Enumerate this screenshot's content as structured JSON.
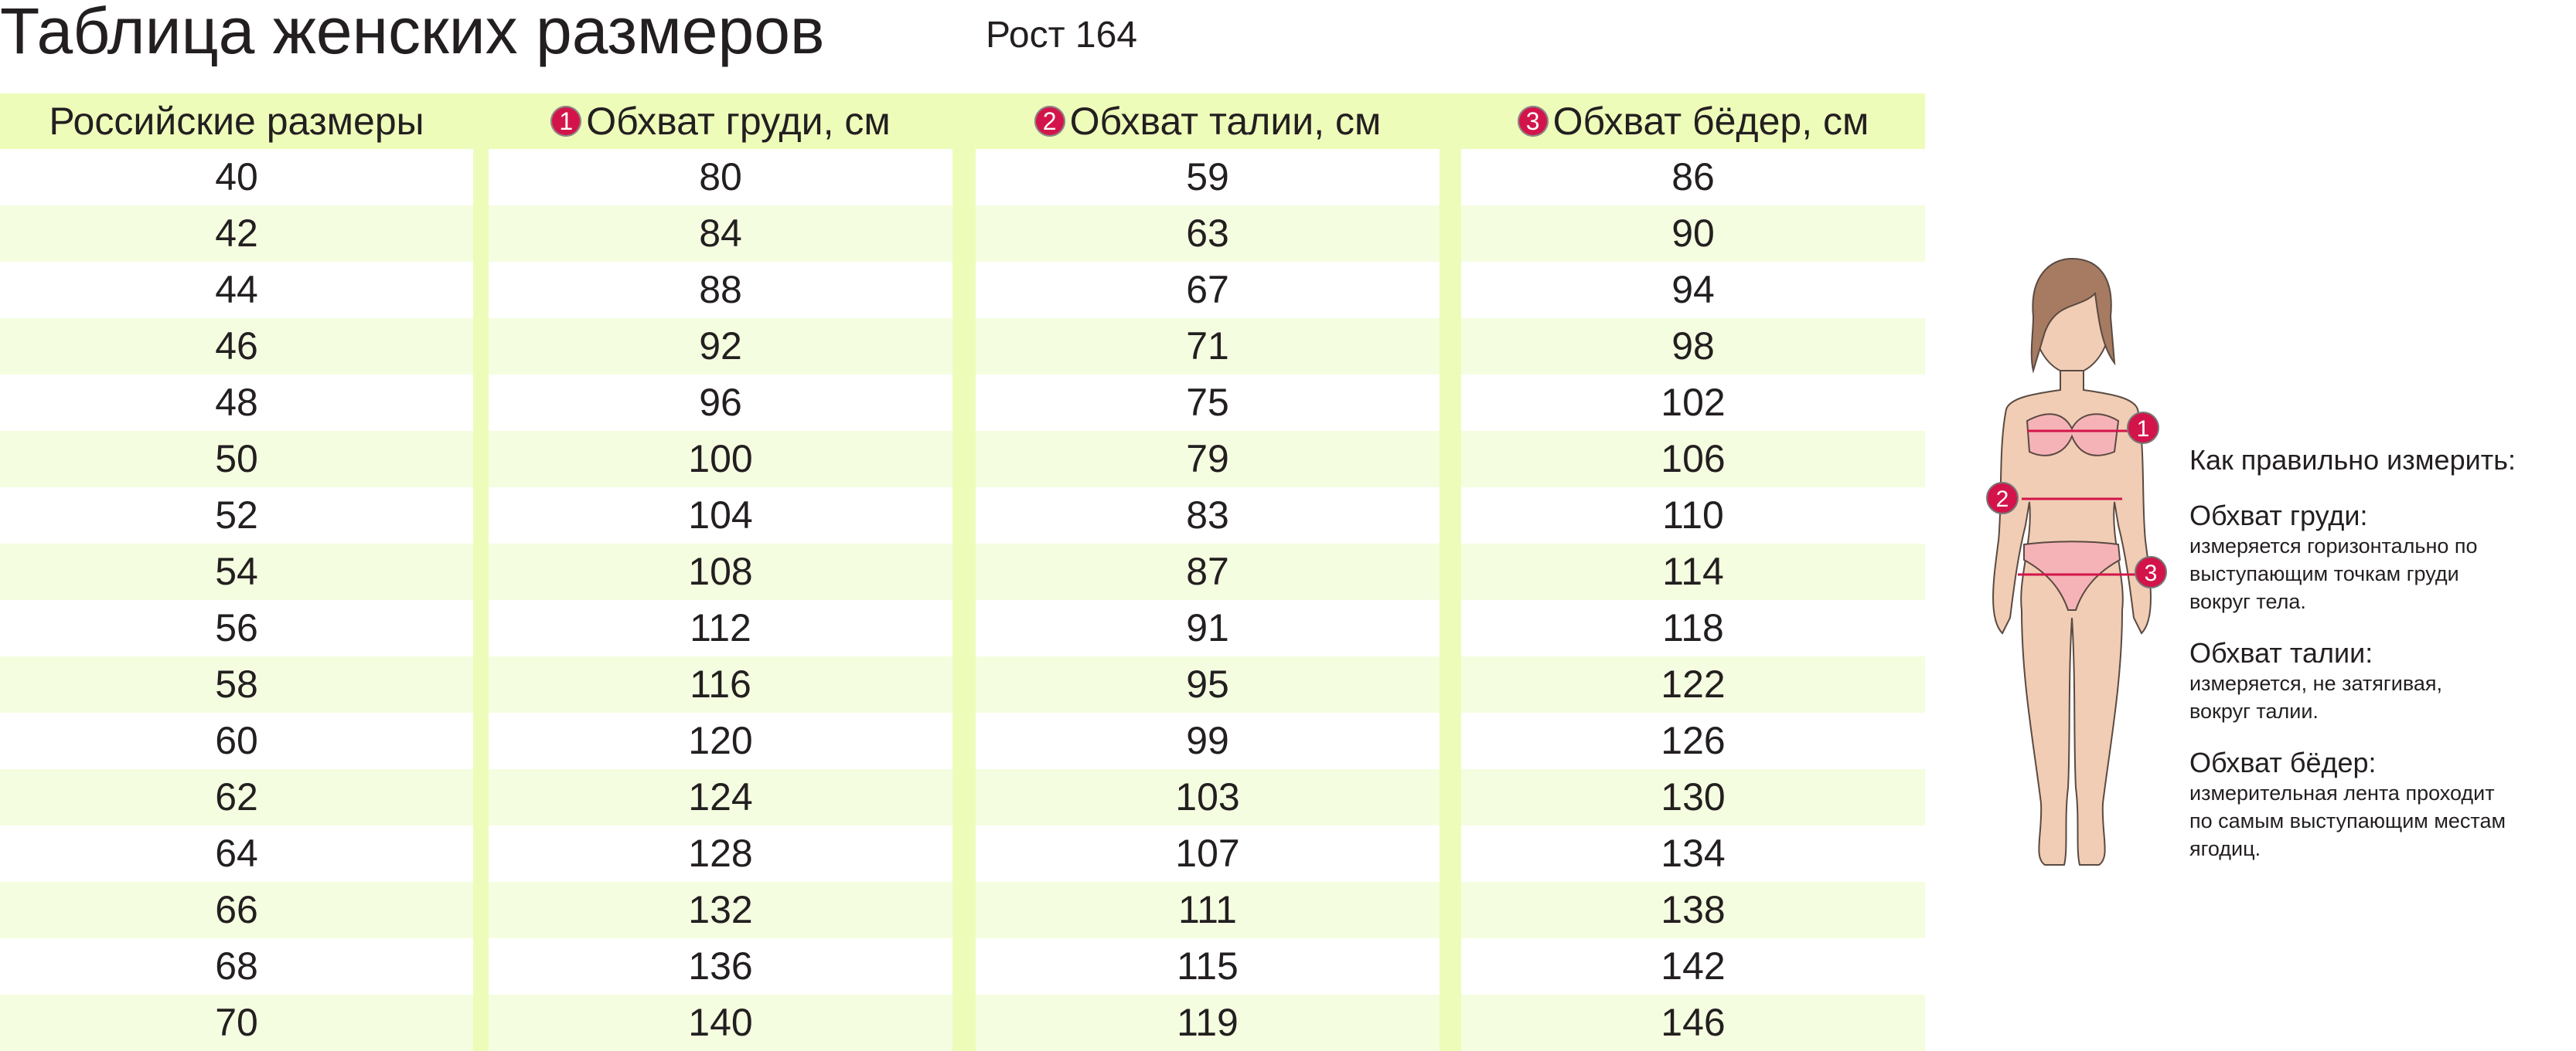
{
  "title": "Таблица женских размеров",
  "height_label": "Рост 164",
  "colors": {
    "header_bg": "#eefcba",
    "stripe": "#f5fde0",
    "badge": "#d3144a"
  },
  "table": {
    "headers": [
      {
        "badge": "",
        "label": "Российские размеры"
      },
      {
        "badge": "1",
        "label": "Обхват груди, см"
      },
      {
        "badge": "2",
        "label": "Обхват талии, см"
      },
      {
        "badge": "3",
        "label": "Обхват бёдер, см"
      }
    ],
    "columns": [
      [
        "40",
        "42",
        "44",
        "46",
        "48",
        "50",
        "52",
        "54",
        "56",
        "58",
        "60",
        "62",
        "64",
        "66",
        "68",
        "70"
      ],
      [
        "80",
        "84",
        "88",
        "92",
        "96",
        "100",
        "104",
        "108",
        "112",
        "116",
        "120",
        "124",
        "128",
        "132",
        "136",
        "140"
      ],
      [
        "59",
        "63",
        "67",
        "71",
        "75",
        "79",
        "83",
        "87",
        "91",
        "95",
        "99",
        "103",
        "107",
        "111",
        "115",
        "119"
      ],
      [
        "86",
        "90",
        "94",
        "98",
        "102",
        "106",
        "110",
        "114",
        "118",
        "122",
        "126",
        "130",
        "134",
        "138",
        "142",
        "146"
      ]
    ]
  },
  "figure": {
    "markers": [
      "1",
      "2",
      "3"
    ]
  },
  "howto": {
    "title": "Как правильно измерить:",
    "items": [
      {
        "name": "Обхват груди:",
        "lines": [
          "измеряется горизонтально по",
          "выступающим точкам груди",
          "вокруг тела."
        ]
      },
      {
        "name": "Обхват талии:",
        "lines": [
          "измеряется, не затягивая,",
          "вокруг талии."
        ]
      },
      {
        "name": "Обхват бёдер:",
        "lines": [
          "измерительная лента проходит",
          "по самым выступающим местам",
          "ягодиц."
        ]
      }
    ]
  }
}
